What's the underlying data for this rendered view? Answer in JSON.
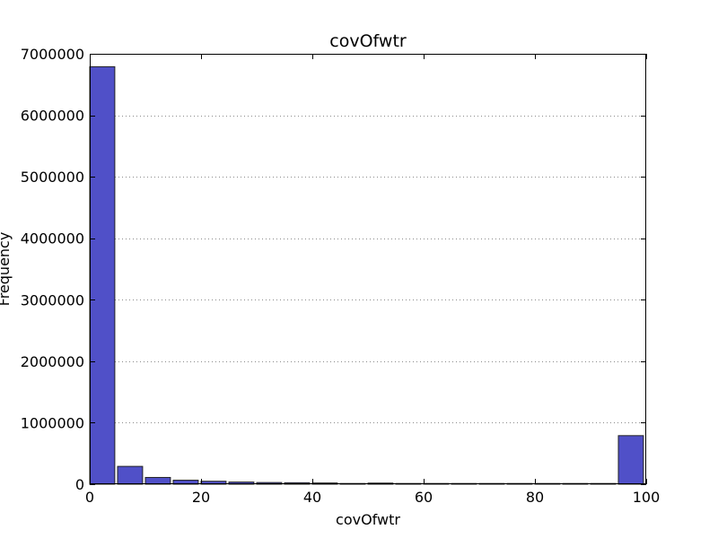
{
  "chart_data": {
    "type": "bar",
    "title": "covOfwtr",
    "xlabel": "covOfwtr",
    "ylabel": "Frequency",
    "xlim": [
      0,
      100
    ],
    "ylim": [
      0,
      7000000
    ],
    "xticks": [
      0,
      20,
      40,
      60,
      80,
      100
    ],
    "yticks": [
      0,
      1000000,
      2000000,
      3000000,
      4000000,
      5000000,
      6000000,
      7000000
    ],
    "bin_width": 5,
    "bar_width_fraction": 0.9,
    "bar_color": "#5050c8",
    "grid": "y-dotted",
    "bins": [
      {
        "x": 0,
        "value": 6790000
      },
      {
        "x": 5,
        "value": 290000
      },
      {
        "x": 10,
        "value": 110000
      },
      {
        "x": 15,
        "value": 65000
      },
      {
        "x": 20,
        "value": 48000
      },
      {
        "x": 25,
        "value": 35000
      },
      {
        "x": 30,
        "value": 27000
      },
      {
        "x": 35,
        "value": 24000
      },
      {
        "x": 40,
        "value": 20000
      },
      {
        "x": 45,
        "value": 10000
      },
      {
        "x": 50,
        "value": 18000
      },
      {
        "x": 55,
        "value": 10000
      },
      {
        "x": 60,
        "value": 8000
      },
      {
        "x": 65,
        "value": 8000
      },
      {
        "x": 70,
        "value": 7000
      },
      {
        "x": 75,
        "value": 7000
      },
      {
        "x": 80,
        "value": 6000
      },
      {
        "x": 85,
        "value": 6000
      },
      {
        "x": 90,
        "value": 6000
      },
      {
        "x": 95,
        "value": 790000
      }
    ]
  }
}
